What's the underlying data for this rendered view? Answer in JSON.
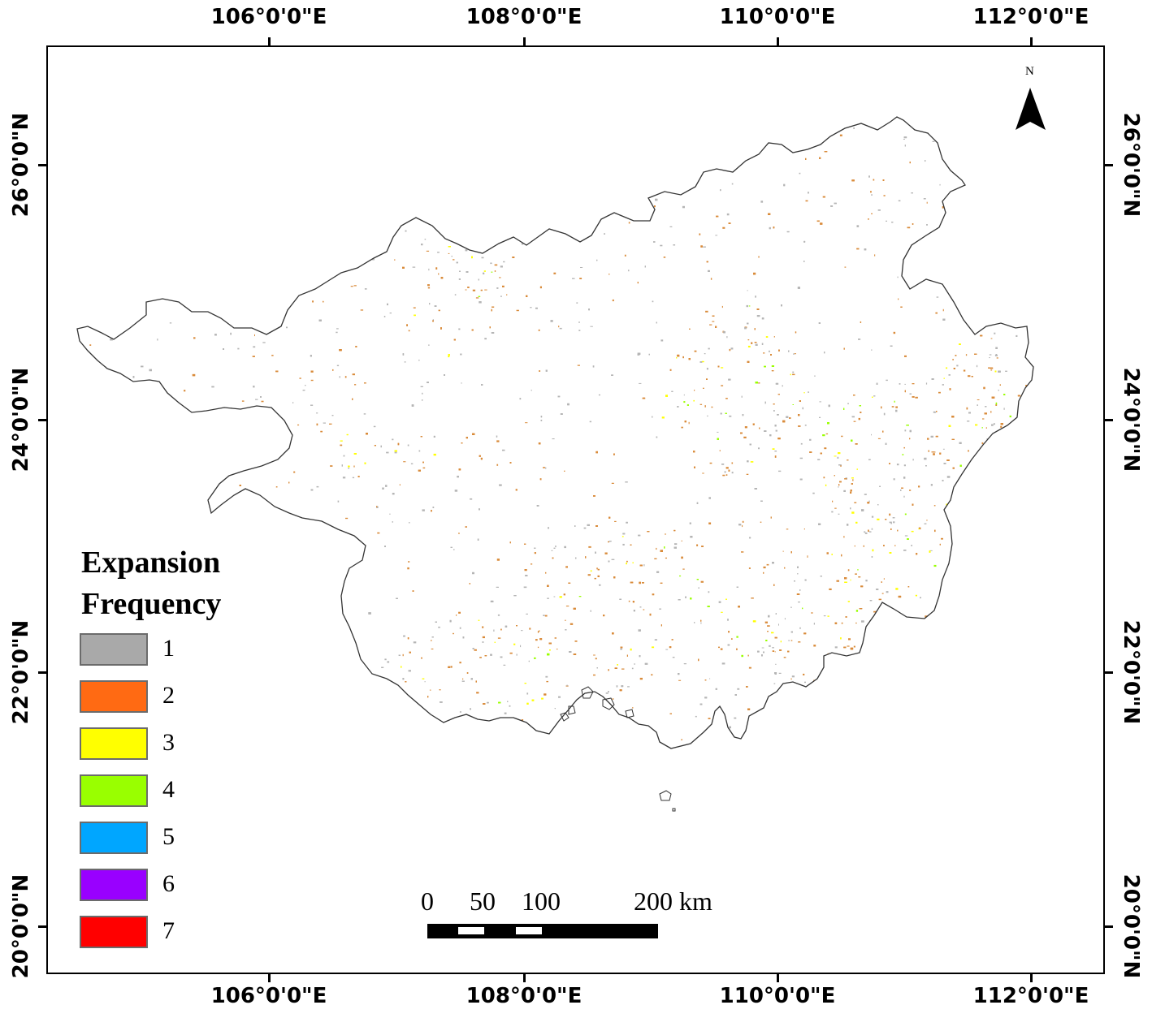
{
  "map": {
    "longitude_labels": [
      "106°0'0\"E",
      "108°0'0\"E",
      "110°0'0\"E",
      "112°0'0\"E"
    ],
    "latitude_labels": [
      "26°0'0\"N",
      "24°0'0\"N",
      "22°0'0\"N",
      "20°0'0\"N"
    ],
    "north_arrow_label": "N"
  },
  "legend": {
    "title_line1": "Expansion",
    "title_line2": "Frequency",
    "items": [
      {
        "label": "1",
        "color": "#a9a9a9"
      },
      {
        "label": "2",
        "color": "#ff6a13"
      },
      {
        "label": "3",
        "color": "#ffff00"
      },
      {
        "label": "4",
        "color": "#99ff00"
      },
      {
        "label": "5",
        "color": "#00a6ff"
      },
      {
        "label": "6",
        "color": "#9900ff"
      },
      {
        "label": "7",
        "color": "#ff0000"
      }
    ]
  },
  "scale_bar": {
    "labels": [
      "0",
      "50",
      "100",
      "200 km"
    ]
  },
  "colors": {
    "land_fill": "#ffffff",
    "boundary": "#333333",
    "class1_speckle": "#b5b5b5",
    "class2_speckle": "#d98b3a"
  }
}
